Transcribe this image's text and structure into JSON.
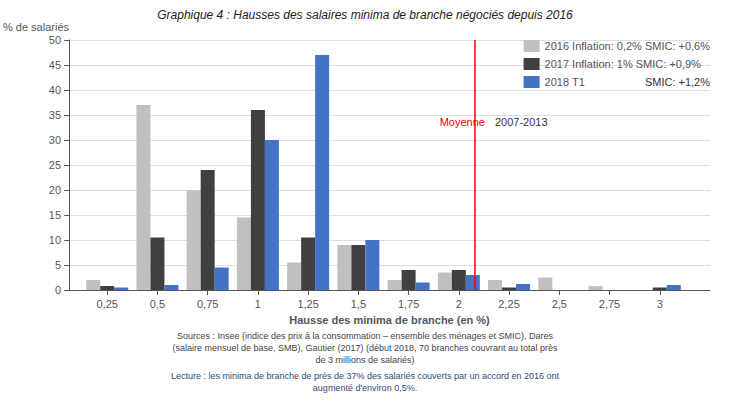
{
  "chart_data": {
    "type": "bar",
    "title": "Graphique 4 : Hausses des salaires minima de branche négociés depuis 2016",
    "x_label": "Hausse des minima de branche (en %)",
    "y_label": "% de salariés",
    "x": [
      0.25,
      0.5,
      0.75,
      1.0,
      1.25,
      1.5,
      1.75,
      2.0,
      2.25,
      2.5,
      2.75,
      3.0
    ],
    "series": [
      {
        "name": "2016 Inflation: 0,2% SMIC: +0,6%",
        "color": "#c0c0c0",
        "values": [
          2.0,
          37.0,
          20.0,
          14.5,
          5.5,
          9.0,
          2.0,
          3.5,
          2.0,
          2.5,
          0.8,
          0.0
        ]
      },
      {
        "name": "2017 Inflation: 1% SMIC: +0,9%",
        "color": "#404040",
        "values": [
          0.8,
          10.5,
          24.0,
          36.0,
          10.5,
          9.0,
          4.0,
          4.0,
          0.5,
          0.0,
          0.0,
          0.5
        ]
      },
      {
        "name": "2018 T1",
        "color": "#4472c4",
        "values": [
          0.5,
          1.0,
          4.5,
          30.0,
          47.0,
          10.0,
          1.5,
          3.0,
          1.2,
          0.0,
          0.0,
          1.0
        ]
      }
    ],
    "xlim": [
      0.06,
      3.25
    ],
    "xticks": [
      {
        "value": 0.25,
        "label": "0,25"
      },
      {
        "value": 0.5,
        "label": "0,5"
      },
      {
        "value": 0.75,
        "label": "0,75"
      },
      1,
      {
        "value": 1.25,
        "label": "1,25"
      },
      {
        "value": 1.5,
        "label": "1,5"
      },
      {
        "value": 1.75,
        "label": "1,75"
      },
      2,
      {
        "value": 2.25,
        "label": "2,25"
      },
      {
        "value": 2.5,
        "label": "2,5"
      },
      {
        "value": 2.75,
        "label": "2,75"
      },
      3
    ],
    "ylim": [
      0,
      50
    ],
    "yticks": [
      0,
      5,
      10,
      15,
      20,
      25,
      30,
      35,
      40,
      45,
      50
    ],
    "grid": true,
    "legend": "upper right",
    "mean_line": {
      "x": 2.15,
      "color": "#ff0000",
      "label": "Moyenne",
      "period_label": "2007-2013"
    },
    "annotations": [
      "SMIC: +1,2%"
    ],
    "source": [
      "Sources : Insee (indice des prix à la consommation – ensemble des ménages et SMIC), Dares",
      "(salaire mensuel de base, SMB), Gautier (2017) (début 2018, 70 branches couvrant au total près",
      "de 3 millions de salariés)"
    ],
    "lecture": [
      "Lecture : les minima de branche de près de 37% des salariés couverts par un accord en 2016 ont",
      "augmenté d'environ 0,5%."
    ]
  }
}
